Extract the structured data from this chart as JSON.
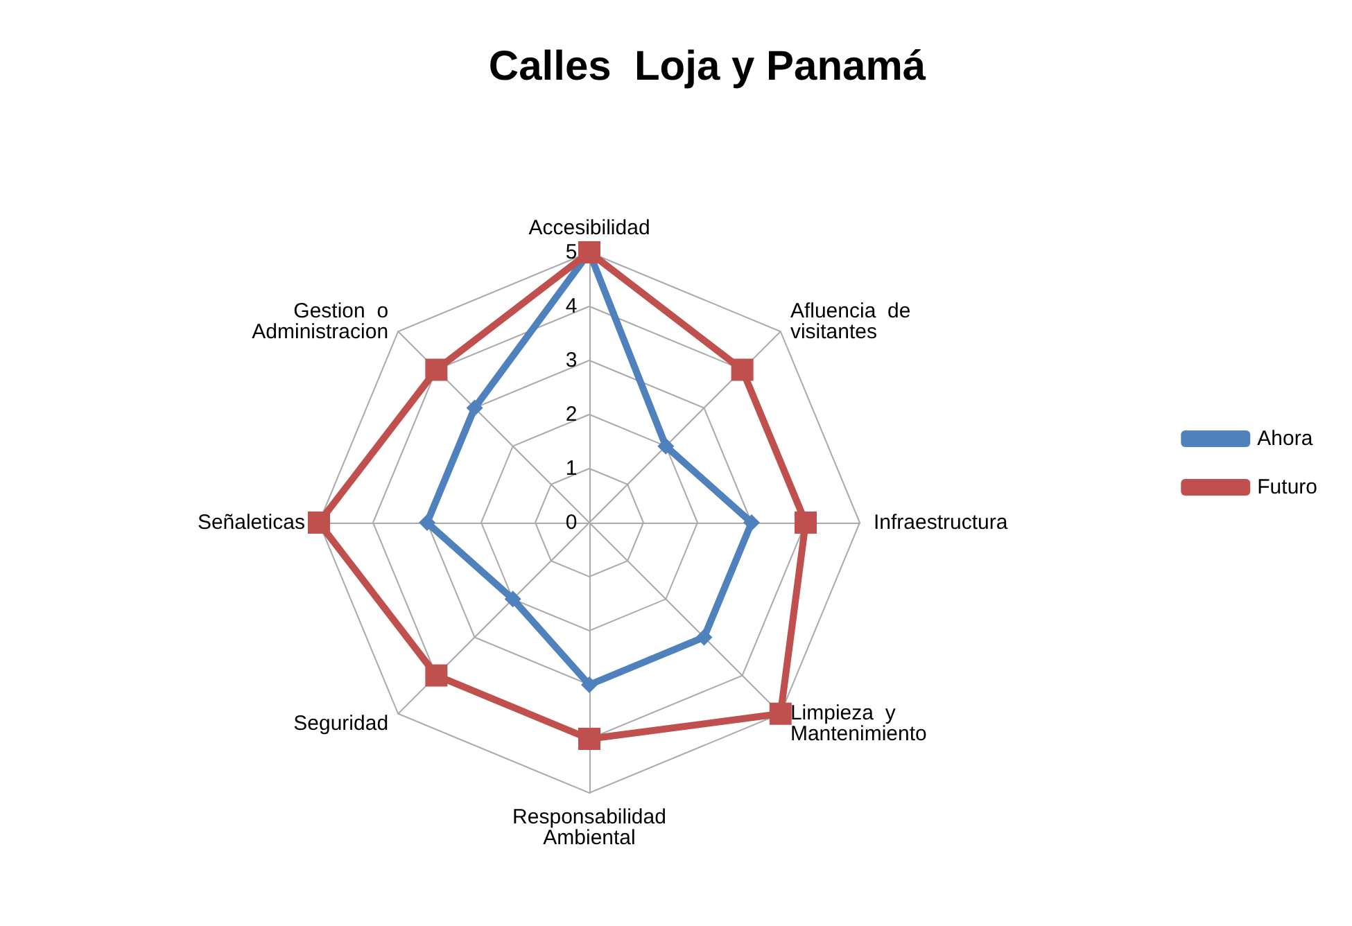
{
  "chart_data": {
    "type": "radar",
    "title": "Calles  Loja y Panamá",
    "categories": [
      "Accesibilidad",
      "Afluencia  de visitantes",
      "Infraestructura",
      "Limpieza  y Mantenimiento",
      "Responsabilidad Ambiental",
      "Seguridad",
      "Señaleticas",
      "Gestion  o Administracion"
    ],
    "series": [
      {
        "name": "Ahora",
        "color": "#4f81bd",
        "marker": "diamond",
        "values": [
          5,
          2,
          3,
          3,
          3,
          2,
          3,
          3
        ]
      },
      {
        "name": "Futuro",
        "color": "#c0504d",
        "marker": "square",
        "values": [
          5,
          4,
          4,
          5,
          4,
          4,
          5,
          4
        ]
      }
    ],
    "ylim": [
      0,
      5
    ],
    "yticks": [
      0,
      1,
      2,
      3,
      4,
      5
    ],
    "grid": true,
    "legend": "right"
  }
}
